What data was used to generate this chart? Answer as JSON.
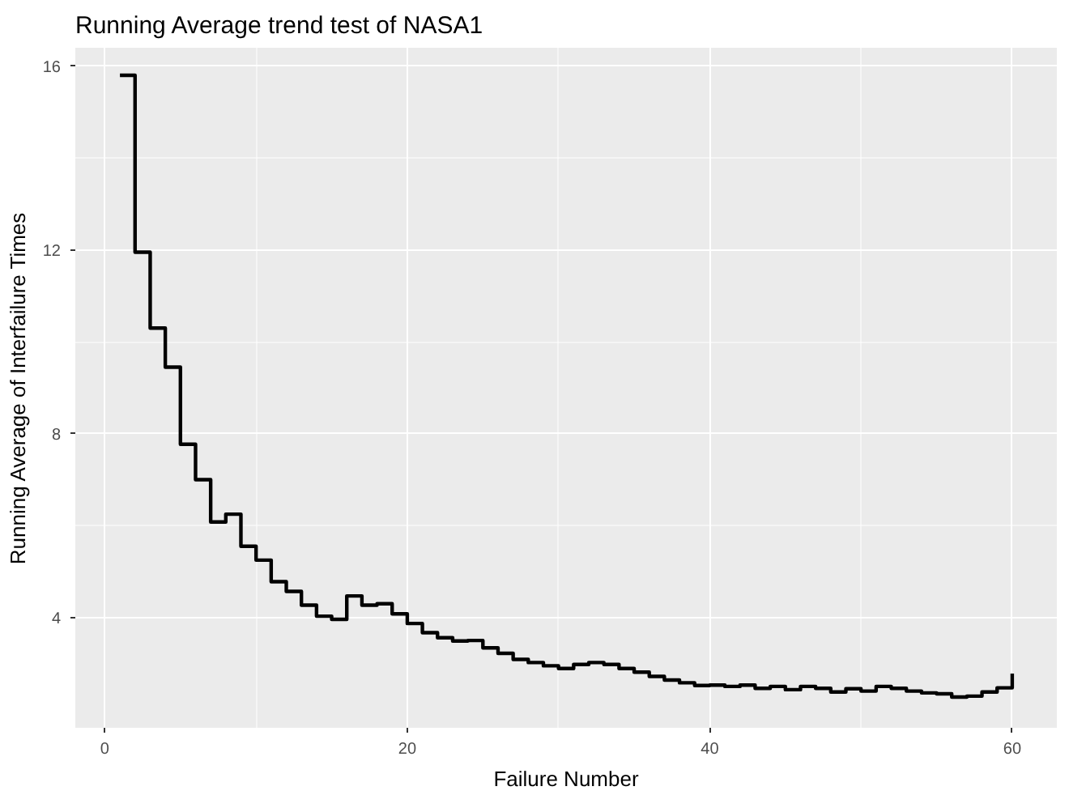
{
  "chart_data": {
    "type": "step",
    "title": "Running Average trend test of NASA1",
    "xlabel": "Failure Number",
    "ylabel": "Running Average of Interfailure Times",
    "x": [
      1,
      2,
      3,
      4,
      5,
      6,
      7,
      8,
      9,
      10,
      11,
      12,
      13,
      14,
      15,
      16,
      17,
      18,
      19,
      20,
      21,
      22,
      23,
      24,
      25,
      26,
      27,
      28,
      29,
      30,
      31,
      32,
      33,
      34,
      35,
      36,
      37,
      38,
      39,
      40,
      41,
      42,
      43,
      44,
      45,
      46,
      47,
      48,
      49,
      50,
      51,
      52,
      53,
      54,
      55,
      56,
      57,
      58,
      59,
      60
    ],
    "series": [
      {
        "color": "#000000",
        "values": [
          15.8,
          11.95,
          10.3,
          9.45,
          7.77,
          7.0,
          6.08,
          6.25,
          5.55,
          5.25,
          4.78,
          4.57,
          4.27,
          4.03,
          3.96,
          4.47,
          4.27,
          4.3,
          4.08,
          3.87,
          3.67,
          3.56,
          3.49,
          3.5,
          3.34,
          3.22,
          3.09,
          3.02,
          2.95,
          2.89,
          2.98,
          3.02,
          2.98,
          2.89,
          2.81,
          2.72,
          2.64,
          2.58,
          2.52,
          2.53,
          2.5,
          2.53,
          2.46,
          2.5,
          2.43,
          2.5,
          2.46,
          2.38,
          2.45,
          2.4,
          2.5,
          2.46,
          2.4,
          2.36,
          2.34,
          2.27,
          2.29,
          2.38,
          2.47,
          2.78
        ]
      }
    ],
    "xlim": [
      -1.95,
      62.95
    ],
    "ylim": [
      1.6,
      16.4
    ],
    "xticks": [
      0,
      20,
      40,
      60
    ],
    "yticks": [
      4,
      8,
      12,
      16
    ],
    "grid": true,
    "line_style": "solid"
  }
}
